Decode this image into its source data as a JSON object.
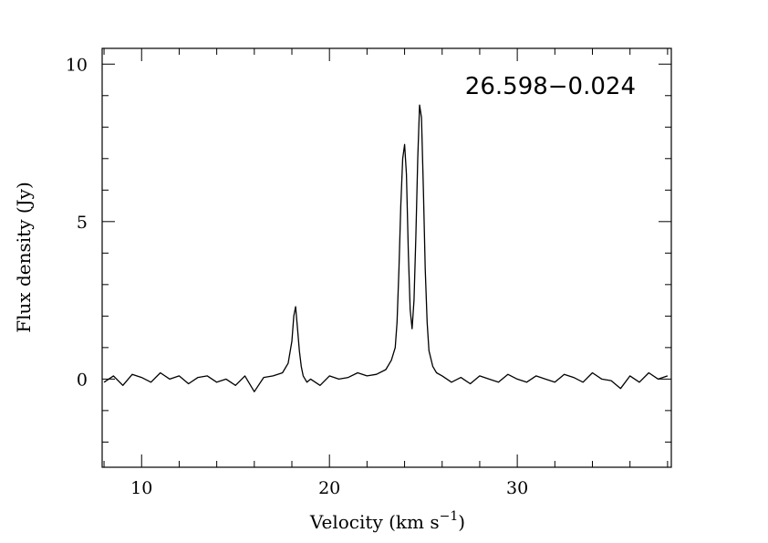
{
  "chart_data": {
    "type": "line",
    "annotation": "26.598−0.024",
    "xlabel": {
      "prefix": "Velocity (km s",
      "superscript": "−1",
      "suffix": ")"
    },
    "ylabel": "Flux density (Jy)",
    "xlim": [
      7.9,
      38.2
    ],
    "ylim": [
      -2.8,
      10.5
    ],
    "x_ticks": [
      {
        "value": 10,
        "label": "10"
      },
      {
        "value": 20,
        "label": "20"
      },
      {
        "value": 30,
        "label": "30"
      }
    ],
    "y_ticks": [
      {
        "value": 0,
        "label": "0"
      },
      {
        "value": 5,
        "label": "5"
      },
      {
        "value": 10,
        "label": "10"
      }
    ],
    "x_minor_step": 2,
    "y_minor_step": 1,
    "grid": false,
    "series": [
      {
        "color": "#000000",
        "x": [
          8.0,
          8.5,
          9.0,
          9.5,
          10.0,
          10.5,
          11.0,
          11.5,
          12.0,
          12.5,
          13.0,
          13.5,
          14.0,
          14.5,
          15.0,
          15.5,
          16.0,
          16.5,
          17.0,
          17.5,
          17.8,
          18.0,
          18.1,
          18.2,
          18.3,
          18.4,
          18.5,
          18.6,
          18.8,
          19.0,
          19.5,
          20.0,
          20.5,
          21.0,
          21.5,
          22.0,
          22.5,
          23.0,
          23.3,
          23.5,
          23.6,
          23.7,
          23.8,
          23.9,
          24.0,
          24.1,
          24.2,
          24.3,
          24.4,
          24.5,
          24.6,
          24.7,
          24.8,
          24.9,
          25.0,
          25.1,
          25.2,
          25.3,
          25.5,
          25.7,
          26.0,
          26.5,
          27.0,
          27.5,
          28.0,
          28.5,
          29.0,
          29.5,
          30.0,
          30.5,
          31.0,
          31.5,
          32.0,
          32.5,
          33.0,
          33.5,
          34.0,
          34.5,
          35.0,
          35.5,
          36.0,
          36.5,
          37.0,
          37.5,
          38.0
        ],
        "values": [
          -0.1,
          0.1,
          -0.2,
          0.15,
          0.05,
          -0.1,
          0.2,
          0.0,
          0.1,
          -0.15,
          0.05,
          0.1,
          -0.1,
          0.0,
          -0.2,
          0.1,
          -0.4,
          0.05,
          0.1,
          0.2,
          0.5,
          1.2,
          2.0,
          2.3,
          1.6,
          0.9,
          0.4,
          0.1,
          -0.1,
          0.0,
          -0.2,
          0.1,
          0.0,
          0.05,
          0.2,
          0.1,
          0.15,
          0.3,
          0.6,
          1.0,
          1.8,
          3.5,
          5.5,
          7.0,
          7.45,
          6.5,
          4.0,
          2.2,
          1.6,
          2.5,
          4.5,
          7.0,
          8.7,
          8.3,
          6.0,
          3.5,
          1.8,
          0.9,
          0.4,
          0.2,
          0.1,
          -0.1,
          0.05,
          -0.15,
          0.1,
          0.0,
          -0.1,
          0.15,
          0.0,
          -0.1,
          0.1,
          0.0,
          -0.1,
          0.15,
          0.05,
          -0.1,
          0.2,
          0.0,
          -0.05,
          -0.3,
          0.1,
          -0.1,
          0.2,
          0.0,
          0.1
        ]
      }
    ]
  }
}
